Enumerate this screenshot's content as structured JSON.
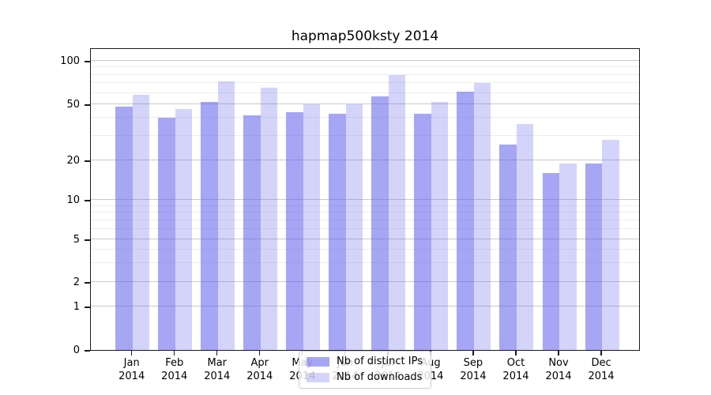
{
  "chart_data": {
    "type": "bar",
    "title": "hapmap500ksty 2014",
    "categories": [
      "Jan",
      "Feb",
      "Mar",
      "Apr",
      "May",
      "Jun",
      "Jul",
      "Aug",
      "Sep",
      "Oct",
      "Nov",
      "Dec"
    ],
    "x_sublabel": "2014",
    "series": [
      {
        "name": "Nb of distinct IPs",
        "color": "rgba(102,102,238,0.58)",
        "values": [
          48,
          40,
          52,
          42,
          44,
          43,
          57,
          43,
          61,
          26,
          16,
          19
        ]
      },
      {
        "name": "Nb of downloads",
        "color": "rgba(102,102,238,0.28)",
        "values": [
          58,
          46,
          72,
          65,
          50,
          50,
          80,
          52,
          70,
          36,
          19,
          28
        ]
      }
    ],
    "y_axis": {
      "scale": "symlog",
      "tick_values": [
        0,
        1,
        2,
        5,
        10,
        20,
        50,
        100
      ],
      "tick_labels": [
        "0",
        "1",
        "2",
        "5",
        "10",
        "20",
        "50",
        "100"
      ],
      "minor_gridlines": [
        3,
        4,
        6,
        7,
        8,
        9,
        30,
        40,
        60,
        70,
        80,
        90
      ],
      "anchors": [
        [
          0,
          0.0
        ],
        [
          1,
          0.1436
        ],
        [
          2,
          0.2245
        ],
        [
          5,
          0.3655
        ],
        [
          10,
          0.496
        ],
        [
          20,
          0.6266
        ],
        [
          50,
          0.812
        ],
        [
          100,
          0.9556
        ]
      ],
      "ylim_top_fraction": 1.0
    },
    "legend": {
      "position": "lower center",
      "entries": [
        "Nb of distinct IPs",
        "Nb of downloads"
      ]
    },
    "colors": {
      "grid_major": "#c9c9c9",
      "grid_minor": "#ededed",
      "spine": "#1a1a1a",
      "background": "#ffffff"
    },
    "grid": "on"
  }
}
